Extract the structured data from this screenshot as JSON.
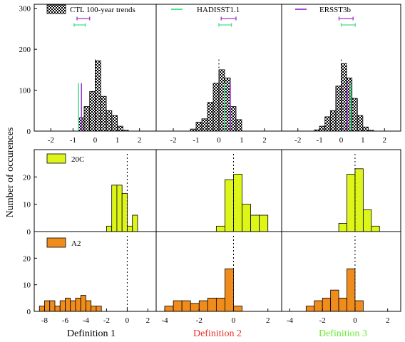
{
  "figure": {
    "ylabel": "Number of occurences",
    "column_labels": [
      {
        "text": "Definition 1",
        "color": "#000000"
      },
      {
        "text": "Definition 2",
        "color": "#e8302a"
      },
      {
        "text": "Definition 3",
        "color": "#66ee33"
      }
    ],
    "legend": {
      "ctl": "CTL 100-year trends",
      "hadisst": "HADISST1.1",
      "ersst": "ERSST3b",
      "c20": "20C",
      "a2": "A2"
    },
    "colors": {
      "hadisst": "#44dd88",
      "ersst": "#9933cc",
      "c20_fill": "#ddf518",
      "a2_fill": "#f08c1c",
      "ctl_fill": "checkered-black"
    }
  },
  "chart_data": [
    {
      "panel": "CTL-def1",
      "type": "bar",
      "bin_width": 0.25,
      "bin_starts": [
        -0.75,
        -0.5,
        -0.25,
        0,
        0.25,
        0.5,
        0.75,
        1.0,
        1.25
      ],
      "values": [
        33,
        60,
        97,
        172,
        85,
        50,
        38,
        12,
        2
      ],
      "xlim": [
        -2.75,
        2.75
      ],
      "ylim": [
        0,
        310
      ],
      "xticks": [
        -2,
        -1,
        0,
        1,
        2
      ],
      "yticks": [
        0,
        100,
        200,
        300
      ],
      "hadisst_trend": -0.75,
      "ersst_trend": -0.62,
      "hadisst_range": [
        -0.95,
        -0.45
      ],
      "ersst_range": [
        -0.82,
        -0.25
      ],
      "zero_line": 0
    },
    {
      "panel": "CTL-def2",
      "type": "bar",
      "bin_width": 0.25,
      "bin_starts": [
        -1.25,
        -1.0,
        -0.75,
        -0.5,
        -0.25,
        0,
        0.25,
        0.5,
        0.75
      ],
      "values": [
        5,
        22,
        30,
        70,
        117,
        150,
        130,
        60,
        28
      ],
      "xlim": [
        -2.75,
        2.75
      ],
      "ylim": [
        0,
        310
      ],
      "xticks": [
        -2,
        -1,
        0,
        1,
        2
      ],
      "hadisst_trend": 0.25,
      "ersst_trend": 0.5,
      "hadisst_range": [
        0,
        0.55
      ],
      "ersst_range": [
        0.1,
        0.75
      ],
      "zero_line": 0
    },
    {
      "panel": "CTL-def3",
      "type": "bar",
      "bin_width": 0.25,
      "bin_starts": [
        -1.25,
        -1.0,
        -0.75,
        -0.5,
        -0.25,
        0,
        0.25,
        0.5,
        0.75,
        1.0,
        1.25
      ],
      "values": [
        3,
        12,
        35,
        50,
        110,
        165,
        130,
        80,
        38,
        10,
        2
      ],
      "xlim": [
        -2.75,
        2.75
      ],
      "ylim": [
        0,
        310
      ],
      "xticks": [
        -2,
        -1,
        0,
        1,
        2
      ],
      "hadisst_trend": 0.45,
      "ersst_trend": 0.27,
      "hadisst_range": [
        0,
        0.65
      ],
      "ersst_range": [
        -0.1,
        0.55
      ],
      "zero_line": 0
    },
    {
      "panel": "20C-def1",
      "type": "bar",
      "bin_width": 0.5,
      "bin_starts": [
        -2,
        -1.5,
        -1,
        -0.5,
        0,
        0.5
      ],
      "values": [
        2,
        17,
        17,
        14,
        2,
        6
      ],
      "xlim": [
        -9,
        2.8
      ],
      "ylim": [
        0,
        30
      ],
      "yticks": [
        0,
        10,
        20
      ],
      "zero_line": 0
    },
    {
      "panel": "20C-def2",
      "type": "bar",
      "bin_width": 0.5,
      "bin_starts": [
        -1,
        -0.5,
        0,
        0.5,
        1,
        1.5
      ],
      "values": [
        2,
        19,
        21,
        10,
        6,
        6
      ],
      "xlim": [
        -4.5,
        2.8
      ],
      "ylim": [
        0,
        30
      ],
      "zero_line": 0
    },
    {
      "panel": "20C-def3",
      "type": "bar",
      "bin_width": 0.5,
      "bin_starts": [
        -1,
        -0.5,
        0,
        0.5,
        1
      ],
      "values": [
        3,
        21,
        23,
        8,
        2
      ],
      "xlim": [
        -4.5,
        2.8
      ],
      "ylim": [
        0,
        30
      ],
      "zero_line": 0
    },
    {
      "panel": "A2-def1",
      "type": "bar",
      "bin_width": 0.5,
      "bin_starts": [
        -8.5,
        -8,
        -7.5,
        -7,
        -6.5,
        -6,
        -5.5,
        -5,
        -4.5,
        -4,
        -3.5,
        -3
      ],
      "values": [
        2,
        4,
        4,
        2,
        4,
        5,
        4,
        5,
        6,
        4,
        2,
        2
      ],
      "xlim": [
        -9,
        2.8
      ],
      "ylim": [
        0,
        30
      ],
      "yticks": [
        0,
        10,
        20
      ],
      "xticks": [
        -8,
        -6,
        -4,
        -2,
        0,
        2
      ],
      "zero_line": 0
    },
    {
      "panel": "A2-def2",
      "type": "bar",
      "bin_width": 0.5,
      "bin_starts": [
        -4,
        -3.5,
        -3,
        -2.5,
        -2,
        -1.5,
        -1,
        -0.5,
        0
      ],
      "values": [
        2,
        4,
        4,
        3,
        4,
        5,
        5,
        16,
        2
      ],
      "xlim": [
        -4.5,
        2.8
      ],
      "ylim": [
        0,
        30
      ],
      "xticks": [
        -4,
        -2,
        0,
        2
      ],
      "zero_line": 0
    },
    {
      "panel": "A2-def3",
      "type": "bar",
      "bin_width": 0.5,
      "bin_starts": [
        -3,
        -2.5,
        -2,
        -1.5,
        -1,
        -0.5,
        0
      ],
      "values": [
        2,
        4,
        5,
        8,
        5,
        16,
        4
      ],
      "xlim": [
        -4.5,
        2.8
      ],
      "ylim": [
        0,
        30
      ],
      "xticks": [
        -4,
        -2,
        0,
        2
      ],
      "zero_line": 0
    }
  ]
}
